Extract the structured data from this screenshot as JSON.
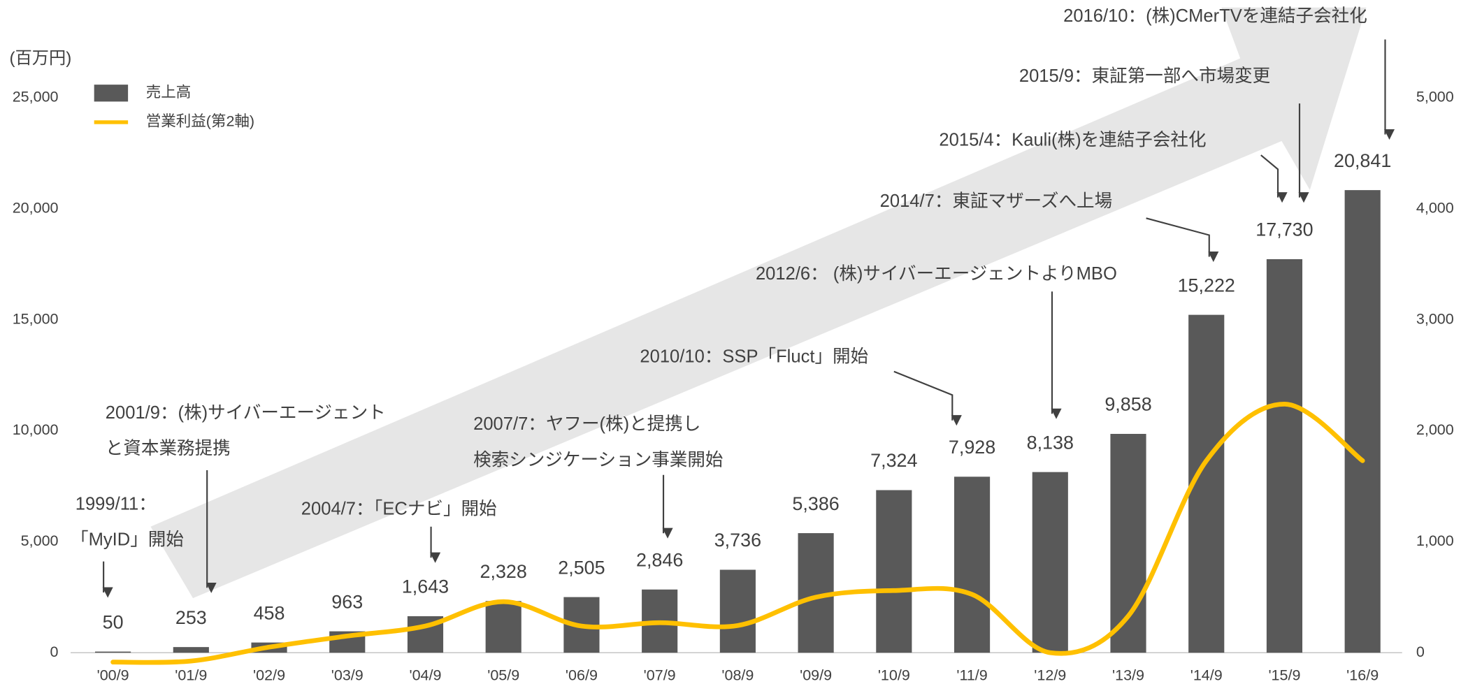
{
  "chart_data": {
    "type": "bar",
    "y_unit": "(百万円)",
    "categories": [
      "'00/9",
      "'01/9",
      "'02/9",
      "'03/9",
      "'04/9",
      "'05/9",
      "'06/9",
      "'07/9",
      "'08/9",
      "'09/9",
      "'10/9",
      "'11/9",
      "'12/9",
      "'13/9",
      "'14/9",
      "'15/9",
      "'16/9"
    ],
    "series": [
      {
        "name": "売上高",
        "color": "#595959",
        "values": [
          50,
          253,
          458,
          963,
          1643,
          2328,
          2505,
          2846,
          3736,
          5386,
          7324,
          7928,
          8138,
          9858,
          15222,
          17730,
          20841
        ],
        "value_labels": [
          "50",
          "253",
          "458",
          "963",
          "1,643",
          "2,328",
          "2,505",
          "2,846",
          "3,736",
          "5,386",
          "7,324",
          "7,928",
          "8,138",
          "9,858",
          "15,222",
          "17,730",
          "20,841"
        ]
      },
      {
        "name": "営業利益(第2軸)",
        "color": "#FFC000",
        "type": "line",
        "axis": "y2",
        "values": [
          -85,
          -75,
          50,
          150,
          240,
          460,
          240,
          270,
          245,
          500,
          560,
          525,
          0,
          330,
          1730,
          2240,
          1730
        ]
      }
    ],
    "ylim": [
      0,
      25000
    ],
    "yticks": [
      0,
      {
        "value": 5000,
        "label": "5,000"
      },
      {
        "value": 10000,
        "label": "10,000"
      },
      {
        "value": 15000,
        "label": "15,000"
      },
      {
        "value": 20000,
        "label": "20,000"
      },
      {
        "value": 25000,
        "label": "25,000"
      }
    ],
    "y2lim": [
      0,
      5000
    ],
    "y2ticks": [
      0,
      {
        "value": 1000,
        "label": "1,000"
      },
      {
        "value": 2000,
        "label": "2,000"
      },
      {
        "value": 3000,
        "label": "3,000"
      },
      {
        "value": 4000,
        "label": "4,000"
      },
      {
        "value": 5000,
        "label": "5,000"
      }
    ],
    "legend": "top-left",
    "annotations": [
      [
        "1999/11：",
        "「MyID」開始"
      ],
      [
        "2001/9：(株)サイバーエージェント",
        "と資本業務提携"
      ],
      [
        "2004/7：「ECナビ」開始"
      ],
      [
        "2007/7：ヤフー(株)と提携し",
        "検索シンジケーション事業開始"
      ],
      [
        "2010/10：SSP「Fluct」開始"
      ],
      [
        "2012/6： (株)サイバーエージェントよりMBO"
      ],
      [
        "2014/7：東証マザーズへ上場"
      ],
      [
        "2015/4：Kauli(株)を連結子会社化"
      ],
      [
        "2015/9：東証第一部へ市場変更"
      ],
      [
        "2016/10：(株)CMerTVを連結子会社化"
      ]
    ]
  }
}
